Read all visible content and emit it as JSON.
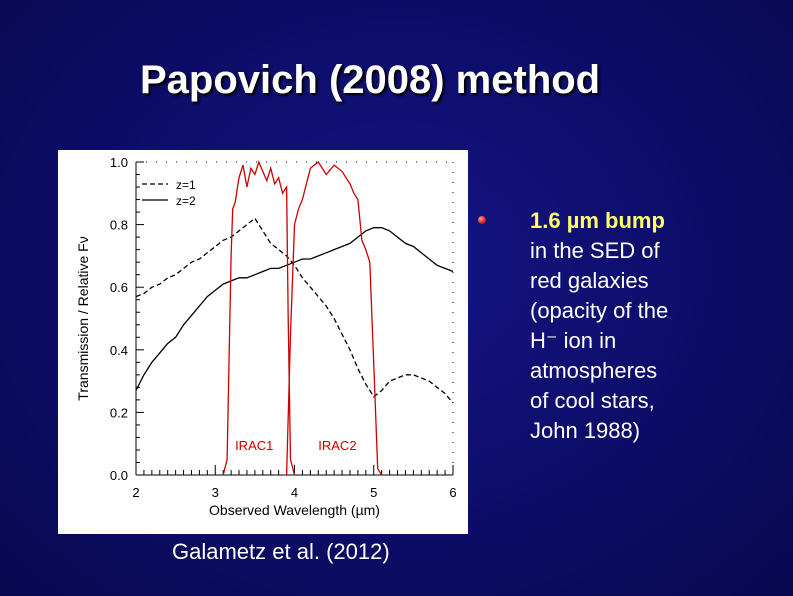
{
  "slide": {
    "title": "Papovich (2008) method",
    "caption": "Galametz et al. (2012)",
    "bullet_icon": "red-sphere-bullet-icon",
    "bullet": {
      "highlight": "1.6 µm bump",
      "lines": [
        "in the SED of",
        "red galaxies",
        "(opacity of the",
        "H⁻ ion in",
        "atmospheres",
        "of cool stars,",
        "John 1988)"
      ]
    }
  },
  "chart_data": {
    "type": "line",
    "xlabel": "Observed Wavelength (µm)",
    "ylabel": "Transmission / Relative Fν",
    "xlim": [
      2,
      6
    ],
    "ylim": [
      0,
      1.0
    ],
    "xticks": [
      "2",
      "3",
      "4",
      "5",
      "6"
    ],
    "yticks": [
      "0.0",
      "0.2",
      "0.4",
      "0.6",
      "0.8",
      "1.0"
    ],
    "legend": [
      "z=1",
      "z=2"
    ],
    "legend_position": "top-left",
    "annotations": [
      "IRAC1",
      "IRAC2"
    ],
    "colors": {
      "sed": "#000000",
      "filter": "#cc0000"
    },
    "series": [
      {
        "name": "z=1",
        "style": "dashed",
        "x": [
          2.0,
          2.1,
          2.2,
          2.3,
          2.4,
          2.5,
          2.6,
          2.7,
          2.8,
          2.9,
          3.0,
          3.1,
          3.2,
          3.3,
          3.4,
          3.5,
          3.6,
          3.7,
          3.8,
          3.9,
          4.0,
          4.1,
          4.2,
          4.3,
          4.4,
          4.5,
          4.6,
          4.7,
          4.8,
          4.9,
          5.0,
          5.1,
          5.2,
          5.3,
          5.4,
          5.5,
          5.6,
          5.7,
          5.8,
          5.9,
          6.0
        ],
        "y": [
          0.57,
          0.58,
          0.6,
          0.61,
          0.63,
          0.64,
          0.66,
          0.68,
          0.69,
          0.71,
          0.73,
          0.75,
          0.76,
          0.78,
          0.8,
          0.82,
          0.78,
          0.74,
          0.72,
          0.7,
          0.67,
          0.63,
          0.6,
          0.57,
          0.54,
          0.5,
          0.45,
          0.4,
          0.34,
          0.29,
          0.25,
          0.27,
          0.3,
          0.31,
          0.32,
          0.32,
          0.31,
          0.3,
          0.28,
          0.26,
          0.23
        ]
      },
      {
        "name": "z=2",
        "style": "solid",
        "x": [
          2.0,
          2.1,
          2.2,
          2.3,
          2.4,
          2.5,
          2.6,
          2.7,
          2.8,
          2.9,
          3.0,
          3.1,
          3.2,
          3.3,
          3.4,
          3.5,
          3.6,
          3.7,
          3.8,
          3.9,
          4.0,
          4.1,
          4.2,
          4.3,
          4.4,
          4.5,
          4.6,
          4.7,
          4.8,
          4.9,
          5.0,
          5.1,
          5.2,
          5.3,
          5.4,
          5.5,
          5.6,
          5.7,
          5.8,
          5.9,
          6.0
        ],
        "y": [
          0.27,
          0.32,
          0.36,
          0.39,
          0.42,
          0.44,
          0.48,
          0.51,
          0.54,
          0.57,
          0.59,
          0.61,
          0.62,
          0.63,
          0.63,
          0.64,
          0.65,
          0.66,
          0.66,
          0.67,
          0.68,
          0.69,
          0.69,
          0.7,
          0.71,
          0.72,
          0.73,
          0.74,
          0.76,
          0.78,
          0.79,
          0.79,
          0.78,
          0.76,
          0.74,
          0.73,
          0.71,
          0.69,
          0.67,
          0.66,
          0.65
        ]
      },
      {
        "name": "IRAC1",
        "style": "solid-red",
        "x": [
          3.1,
          3.15,
          3.2,
          3.22,
          3.25,
          3.3,
          3.35,
          3.4,
          3.45,
          3.5,
          3.55,
          3.6,
          3.65,
          3.7,
          3.75,
          3.8,
          3.85,
          3.9,
          3.92,
          3.95,
          4.0
        ],
        "y": [
          0.0,
          0.05,
          0.7,
          0.85,
          0.87,
          0.95,
          0.99,
          0.92,
          0.98,
          0.96,
          1.0,
          0.97,
          0.94,
          0.98,
          0.93,
          0.95,
          0.9,
          0.92,
          0.5,
          0.05,
          0.0
        ]
      },
      {
        "name": "IRAC2",
        "style": "solid-red",
        "x": [
          3.9,
          3.95,
          4.0,
          4.05,
          4.1,
          4.15,
          4.2,
          4.3,
          4.4,
          4.5,
          4.6,
          4.7,
          4.75,
          4.8,
          4.85,
          4.9,
          4.95,
          5.0,
          5.05,
          5.1
        ],
        "y": [
          0.0,
          0.45,
          0.8,
          0.85,
          0.88,
          0.93,
          0.98,
          1.0,
          0.96,
          0.99,
          0.97,
          0.93,
          0.9,
          0.88,
          0.75,
          0.72,
          0.68,
          0.35,
          0.02,
          0.0
        ]
      }
    ]
  }
}
